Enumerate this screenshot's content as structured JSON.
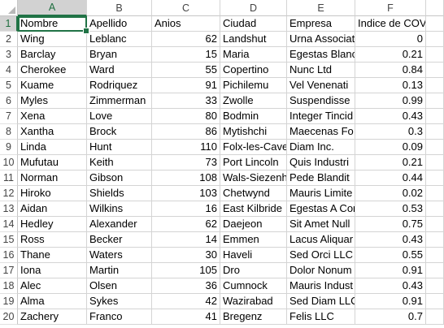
{
  "columns": [
    "A",
    "B",
    "C",
    "D",
    "E",
    "F",
    ""
  ],
  "headers": {
    "nombre": "Nombre",
    "apellido": "Apellido",
    "anios": "Anios",
    "ciudad": "Ciudad",
    "empresa": "Empresa",
    "indice": "Indice de COVID"
  },
  "rows": [
    {
      "n": "2",
      "nombre": "Wing",
      "apellido": "Leblanc",
      "anios": "62",
      "ciudad": "Landshut",
      "empresa": "Urna Associat",
      "indice": "0"
    },
    {
      "n": "3",
      "nombre": "Barclay",
      "apellido": "Bryan",
      "anios": "15",
      "ciudad": "Maria",
      "empresa": "Egestas Blanc",
      "indice": "0.21"
    },
    {
      "n": "4",
      "nombre": "Cherokee",
      "apellido": "Ward",
      "anios": "55",
      "ciudad": "Copertino",
      "empresa": "Nunc Ltd",
      "indice": "0.84"
    },
    {
      "n": "5",
      "nombre": "Kuame",
      "apellido": "Rodriquez",
      "anios": "91",
      "ciudad": "Pichilemu",
      "empresa": "Vel Venenati",
      "indice": "0.13"
    },
    {
      "n": "6",
      "nombre": "Myles",
      "apellido": "Zimmerman",
      "anios": "33",
      "ciudad": "Zwolle",
      "empresa": "Suspendisse",
      "indice": "0.99"
    },
    {
      "n": "7",
      "nombre": "Xena",
      "apellido": "Love",
      "anios": "80",
      "ciudad": "Bodmin",
      "empresa": "Integer Tincid",
      "indice": "0.43"
    },
    {
      "n": "8",
      "nombre": "Xantha",
      "apellido": "Brock",
      "anios": "86",
      "ciudad": "Mytishchi",
      "empresa": "Maecenas Fo",
      "indice": "0.3"
    },
    {
      "n": "9",
      "nombre": "Linda",
      "apellido": "Hunt",
      "anios": "110",
      "ciudad": "Folx-les-Cave",
      "empresa": "Diam Inc.",
      "indice": "0.09"
    },
    {
      "n": "10",
      "nombre": "Mufutau",
      "apellido": "Keith",
      "anios": "73",
      "ciudad": "Port Lincoln",
      "empresa": "Quis Industri",
      "indice": "0.21"
    },
    {
      "n": "11",
      "nombre": "Norman",
      "apellido": "Gibson",
      "anios": "108",
      "ciudad": "Wals-Siezenh",
      "empresa": "Pede Blandit",
      "indice": "0.44"
    },
    {
      "n": "12",
      "nombre": "Hiroko",
      "apellido": "Shields",
      "anios": "103",
      "ciudad": "Chetwynd",
      "empresa": "Mauris Limite",
      "indice": "0.02"
    },
    {
      "n": "13",
      "nombre": "Aidan",
      "apellido": "Wilkins",
      "anios": "16",
      "ciudad": "East Kilbride",
      "empresa": "Egestas A Cor",
      "indice": "0.53"
    },
    {
      "n": "14",
      "nombre": "Hedley",
      "apellido": "Alexander",
      "anios": "62",
      "ciudad": "Daejeon",
      "empresa": "Sit Amet Null",
      "indice": "0.75"
    },
    {
      "n": "15",
      "nombre": "Ross",
      "apellido": "Becker",
      "anios": "14",
      "ciudad": "Emmen",
      "empresa": "Lacus Aliquar",
      "indice": "0.43"
    },
    {
      "n": "16",
      "nombre": "Thane",
      "apellido": "Waters",
      "anios": "30",
      "ciudad": "Haveli",
      "empresa": "Sed Orci LLC",
      "indice": "0.55"
    },
    {
      "n": "17",
      "nombre": "Iona",
      "apellido": "Martin",
      "anios": "105",
      "ciudad": "Dro",
      "empresa": "Dolor Nonum",
      "indice": "0.91"
    },
    {
      "n": "18",
      "nombre": "Alec",
      "apellido": "Olsen",
      "anios": "36",
      "ciudad": "Cumnock",
      "empresa": "Mauris Indust",
      "indice": "0.43"
    },
    {
      "n": "19",
      "nombre": "Alma",
      "apellido": "Sykes",
      "anios": "42",
      "ciudad": "Wazirabad",
      "empresa": "Sed Diam LLC",
      "indice": "0.91"
    },
    {
      "n": "20",
      "nombre": "Zachery",
      "apellido": "Franco",
      "anios": "41",
      "ciudad": "Bregenz",
      "empresa": "Felis LLC",
      "indice": "0.7"
    }
  ],
  "header_row_number": "1",
  "colors": {
    "accent": "#217346",
    "header_bg_active": "#d2d2d2",
    "gridline": "#d4d4d4"
  }
}
